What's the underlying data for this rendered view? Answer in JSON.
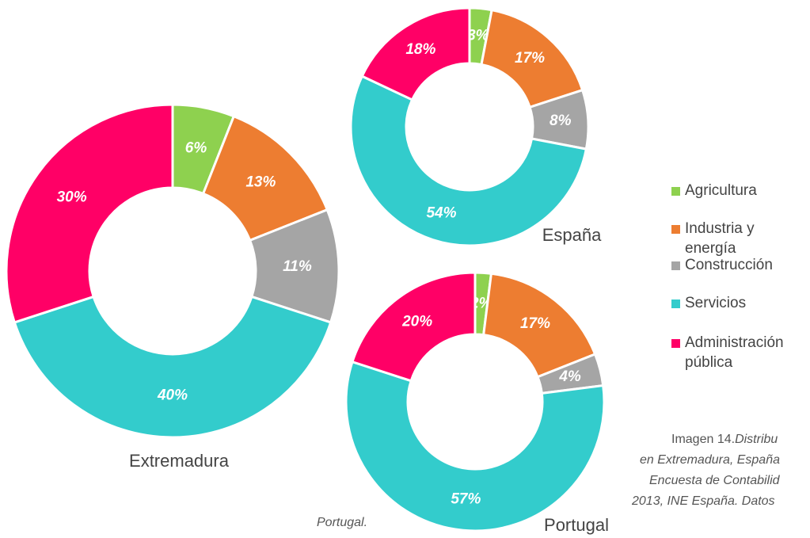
{
  "chart_data": [
    {
      "type": "pie",
      "title": "Extremadura",
      "categories": [
        "Agricultura",
        "Industria y energía",
        "Construcción",
        "Servicios",
        "Administración pública"
      ],
      "colors": [
        "#8ed14f",
        "#ed7d31",
        "#a5a5a5",
        "#33cccc",
        "#ff0066"
      ],
      "values": [
        6,
        13,
        11,
        40,
        30
      ],
      "value_labels": [
        "6%",
        "13%",
        "11%",
        "40%",
        "30%"
      ]
    },
    {
      "type": "pie",
      "title": "España",
      "categories": [
        "Agricultura",
        "Industria y energía",
        "Construcción",
        "Servicios",
        "Administración pública"
      ],
      "colors": [
        "#8ed14f",
        "#ed7d31",
        "#a5a5a5",
        "#33cccc",
        "#ff0066"
      ],
      "values": [
        3,
        17,
        8,
        54,
        18
      ],
      "value_labels": [
        "3%",
        "17%",
        "8%",
        "54%",
        "18%"
      ]
    },
    {
      "type": "pie",
      "title": "Portugal",
      "categories": [
        "Agricultura",
        "Industria y energía",
        "Construcción",
        "Servicios",
        "Administración pública"
      ],
      "colors": [
        "#8ed14f",
        "#ed7d31",
        "#a5a5a5",
        "#33cccc",
        "#ff0066"
      ],
      "values": [
        2,
        17,
        4,
        57,
        20
      ],
      "value_labels": [
        "2%",
        "17%",
        "4%",
        "57%",
        "20%"
      ]
    }
  ],
  "caption": {
    "lead": "Imagen 14.",
    "lead_italic": "Distribu",
    "lines": [
      "en Extremadura, España",
      "Encuesta de Contabilid",
      "2013, INE España. Datos"
    ],
    "tail": "Portugal."
  }
}
